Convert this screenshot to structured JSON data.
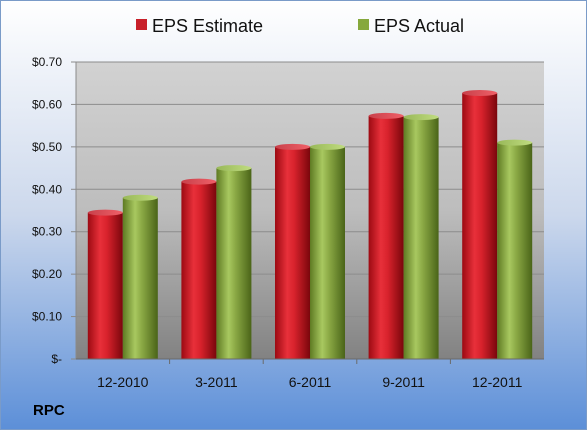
{
  "ticker": "RPC",
  "chart_data": {
    "type": "bar",
    "categories": [
      "12-2010",
      "3-2011",
      "6-2011",
      "9-2011",
      "12-2011"
    ],
    "series": [
      {
        "name": "EPS Estimate",
        "values": [
          0.345,
          0.418,
          0.5,
          0.573,
          0.627
        ],
        "color": "#c8202a"
      },
      {
        "name": "EPS Actual",
        "values": [
          0.38,
          0.45,
          0.5,
          0.57,
          0.51
        ],
        "color": "#86a83c"
      }
    ],
    "y_ticks": [
      0,
      0.1,
      0.2,
      0.3,
      0.4,
      0.5,
      0.6,
      0.7
    ],
    "y_tick_labels": [
      "$-",
      "$0.10",
      "$0.20",
      "$0.30",
      "$0.40",
      "$0.50",
      "$0.60",
      "$0.70"
    ],
    "ylim": [
      0,
      0.7
    ],
    "grid": true,
    "legend_position": "top"
  }
}
